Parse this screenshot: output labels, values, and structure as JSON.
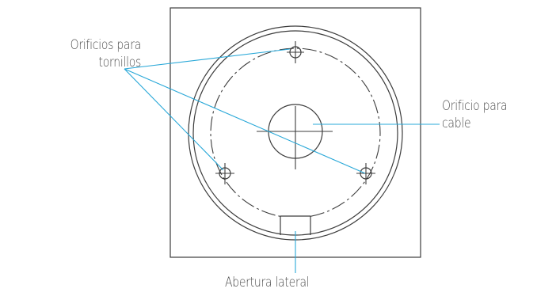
{
  "labels": {
    "screw_holes_line1": "Orificios para",
    "screw_holes_line2": "tornillos",
    "cable_hole_line1": "Orificio para",
    "cable_hole_line2": "cable",
    "side_opening": "Abertura lateral"
  },
  "colors": {
    "line": "#3c3c3c",
    "leader": "#29a8d8",
    "text": "#4a4a4a"
  }
}
